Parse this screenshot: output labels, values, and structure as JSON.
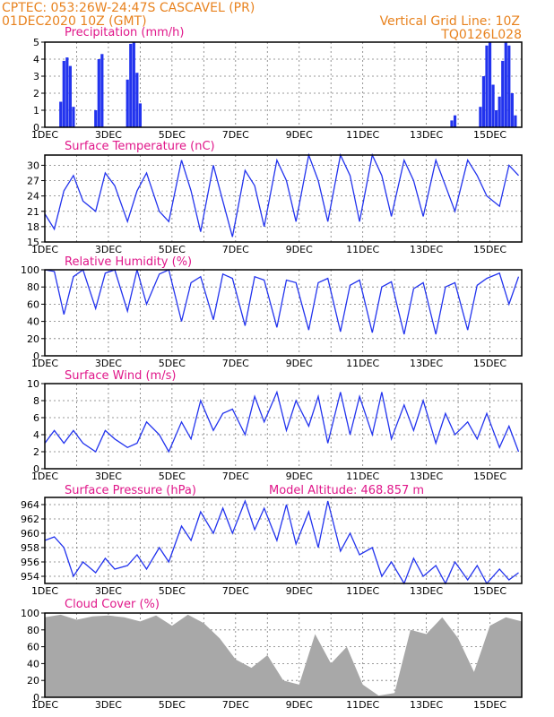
{
  "header": {
    "line1": "CPTEC:   053:26W-24:47S   CASCAVEL (PR)",
    "line2": "01DEC2020 10Z (GMT)",
    "grid_note": "Vertical Grid Line: 10Z",
    "code": "TQ0126L028"
  },
  "colors": {
    "line": "#2233ee",
    "title": "#e0178a",
    "header": "#e8821e",
    "cloud": "#a8a8a8"
  },
  "x_labels": [
    "1DEC",
    "3DEC",
    "5DEC",
    "7DEC",
    "9DEC",
    "11DEC",
    "13DEC",
    "15DEC"
  ],
  "chart_data": [
    {
      "type": "bar",
      "title": "Precipitation (mm/h)",
      "ylim": [
        0,
        5
      ],
      "yticks": [
        0,
        1,
        2,
        3,
        4,
        5
      ],
      "x": [
        0.5,
        0.6,
        0.7,
        0.8,
        0.9,
        1.6,
        1.7,
        1.8,
        2.6,
        2.7,
        2.8,
        2.9,
        3.0,
        12.8,
        12.9,
        13.7,
        13.8,
        13.9,
        14.0,
        14.1,
        14.2,
        14.3,
        14.4,
        14.5,
        14.6,
        14.7,
        14.8
      ],
      "values": [
        1.5,
        3.9,
        4.1,
        3.6,
        1.2,
        1.0,
        4.0,
        4.3,
        2.8,
        4.9,
        5.0,
        3.2,
        1.4,
        0.4,
        0.7,
        1.2,
        3.0,
        4.8,
        5.0,
        2.5,
        1.0,
        1.8,
        3.9,
        5.0,
        4.8,
        2.0,
        0.7
      ]
    },
    {
      "type": "line",
      "title": "Surface Temperature (nC)",
      "ylim": [
        15,
        32
      ],
      "yticks": [
        15,
        18,
        21,
        24,
        27,
        30
      ],
      "x": [
        0,
        0.3,
        0.6,
        0.9,
        1.2,
        1.6,
        1.9,
        2.2,
        2.6,
        2.9,
        3.2,
        3.6,
        3.9,
        4.3,
        4.6,
        4.9,
        5.3,
        5.6,
        5.9,
        6.3,
        6.6,
        6.9,
        7.3,
        7.6,
        7.9,
        8.3,
        8.6,
        8.9,
        9.3,
        9.6,
        9.9,
        10.3,
        10.6,
        10.9,
        11.3,
        11.6,
        11.9,
        12.3,
        12.6,
        12.9,
        13.3,
        13.6,
        13.9,
        14.3,
        14.6,
        14.9
      ],
      "values": [
        20.5,
        17.5,
        25,
        28,
        23,
        21,
        28.5,
        26,
        19,
        25,
        28.5,
        21,
        19,
        31,
        25,
        17,
        30,
        23,
        16,
        29,
        26,
        18,
        31,
        27,
        19,
        32,
        27,
        19,
        32,
        28,
        19,
        32,
        28,
        20,
        31,
        27,
        20,
        31,
        26,
        21,
        31,
        28,
        24,
        22,
        30,
        28
      ]
    },
    {
      "type": "line",
      "title": "Relative Humidity (%)",
      "ylim": [
        0,
        100
      ],
      "yticks": [
        0,
        20,
        40,
        60,
        80,
        100
      ],
      "x": [
        0,
        0.3,
        0.6,
        0.9,
        1.2,
        1.6,
        1.9,
        2.2,
        2.6,
        2.9,
        3.2,
        3.6,
        3.9,
        4.3,
        4.6,
        4.9,
        5.3,
        5.6,
        5.9,
        6.3,
        6.6,
        6.9,
        7.3,
        7.6,
        7.9,
        8.3,
        8.6,
        8.9,
        9.3,
        9.6,
        9.9,
        10.3,
        10.6,
        10.9,
        11.3,
        11.6,
        11.9,
        12.3,
        12.6,
        12.9,
        13.3,
        13.6,
        13.9,
        14.3,
        14.6,
        14.9
      ],
      "values": [
        100,
        98,
        48,
        92,
        100,
        55,
        96,
        100,
        52,
        100,
        60,
        95,
        100,
        40,
        85,
        92,
        42,
        95,
        90,
        35,
        92,
        88,
        33,
        88,
        85,
        30,
        85,
        90,
        28,
        82,
        88,
        27,
        80,
        86,
        25,
        78,
        85,
        25,
        80,
        85,
        30,
        82,
        90,
        96,
        60,
        92
      ]
    },
    {
      "type": "line",
      "title": "Surface Wind (m/s)",
      "ylim": [
        0,
        10
      ],
      "yticks": [
        0,
        2,
        4,
        6,
        8,
        10
      ],
      "x": [
        0,
        0.3,
        0.6,
        0.9,
        1.2,
        1.6,
        1.9,
        2.2,
        2.6,
        2.9,
        3.2,
        3.6,
        3.9,
        4.3,
        4.6,
        4.9,
        5.3,
        5.6,
        5.9,
        6.3,
        6.6,
        6.9,
        7.3,
        7.6,
        7.9,
        8.3,
        8.6,
        8.9,
        9.3,
        9.6,
        9.9,
        10.3,
        10.6,
        10.9,
        11.3,
        11.6,
        11.9,
        12.3,
        12.6,
        12.9,
        13.3,
        13.6,
        13.9,
        14.3,
        14.6,
        14.9
      ],
      "values": [
        3,
        4.5,
        3,
        4.5,
        3,
        2,
        4.5,
        3.5,
        2.5,
        3,
        5.5,
        4,
        2,
        5.5,
        3.5,
        8,
        4.5,
        6.5,
        7,
        4,
        8.5,
        5.5,
        9,
        4.5,
        8,
        5,
        8.5,
        3,
        9,
        4,
        8.5,
        4,
        9,
        3.5,
        7.5,
        4.5,
        8,
        3,
        6.5,
        4,
        5.5,
        3.5,
        6.5,
        2.5,
        5,
        2
      ]
    },
    {
      "type": "line",
      "title": "Surface Pressure (hPa)",
      "note": "Model Altitude: 468.857 m",
      "ylim": [
        953,
        965
      ],
      "yticks": [
        954,
        956,
        958,
        960,
        962,
        964
      ],
      "x": [
        0,
        0.3,
        0.6,
        0.9,
        1.2,
        1.6,
        1.9,
        2.2,
        2.6,
        2.9,
        3.2,
        3.6,
        3.9,
        4.3,
        4.6,
        4.9,
        5.3,
        5.6,
        5.9,
        6.3,
        6.6,
        6.9,
        7.3,
        7.6,
        7.9,
        8.3,
        8.6,
        8.9,
        9.3,
        9.6,
        9.9,
        10.3,
        10.6,
        10.9,
        11.3,
        11.6,
        11.9,
        12.3,
        12.6,
        12.9,
        13.3,
        13.6,
        13.9,
        14.3,
        14.6,
        14.9
      ],
      "values": [
        959,
        959.5,
        958,
        954,
        956,
        954.5,
        956.5,
        955,
        955.5,
        957,
        955,
        958,
        956,
        961,
        959,
        963,
        960,
        963.5,
        960,
        964.5,
        960.5,
        963.5,
        959,
        964,
        958.5,
        963,
        958,
        964.5,
        957.5,
        960,
        957,
        958,
        954,
        956,
        953,
        956.5,
        954,
        955.5,
        953,
        956,
        953.5,
        955.5,
        953,
        955,
        953.5,
        954.5
      ]
    },
    {
      "type": "area",
      "title": "Cloud Cover (%)",
      "ylim": [
        0,
        100
      ],
      "yticks": [
        0,
        20,
        40,
        60,
        80,
        100
      ],
      "x": [
        0,
        0.5,
        1,
        1.5,
        2,
        2.5,
        3,
        3.5,
        4,
        4.5,
        5,
        5.5,
        6,
        6.5,
        7,
        7.5,
        8,
        8.5,
        9,
        9.5,
        10,
        10.5,
        11,
        11.5,
        12,
        12.5,
        13,
        13.5,
        14,
        14.5,
        15
      ],
      "values": [
        95,
        98,
        92,
        96,
        97,
        95,
        90,
        97,
        85,
        98,
        88,
        70,
        45,
        35,
        50,
        20,
        15,
        75,
        40,
        60,
        15,
        2,
        5,
        80,
        75,
        95,
        70,
        30,
        85,
        95,
        90
      ]
    }
  ]
}
